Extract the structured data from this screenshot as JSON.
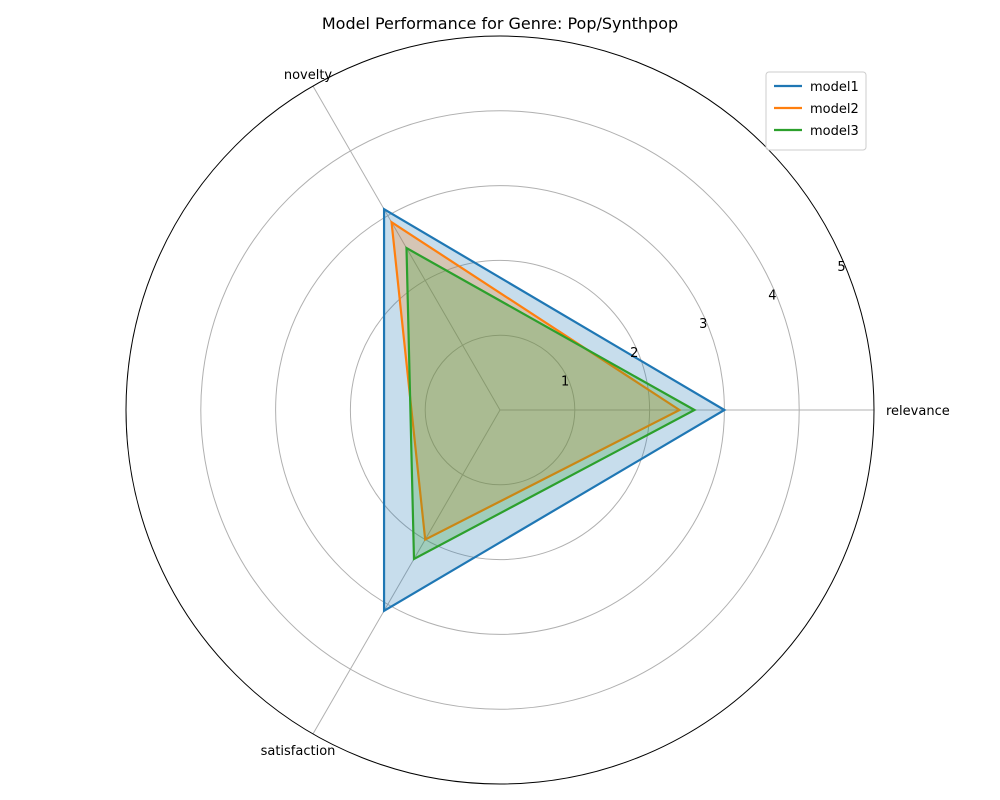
{
  "chart_data": {
    "type": "radar",
    "title": "Model Performance for Genre: Pop/Synthpop",
    "axes": [
      "relevance",
      "novelty",
      "satisfaction"
    ],
    "rlim": [
      0,
      5
    ],
    "radial_ticks": [
      "1",
      "2",
      "3",
      "4",
      "5"
    ],
    "radial_tick_values": [
      1,
      2,
      3,
      4,
      5
    ],
    "grid": true,
    "legend_position": "top-right",
    "series": [
      {
        "name": "model1",
        "values": [
          3.0,
          3.1,
          3.1
        ],
        "color": "#1f77b4",
        "filled": true
      },
      {
        "name": "model2",
        "values": [
          2.4,
          2.9,
          2.0
        ],
        "color": "#ff7f0e",
        "filled": true
      },
      {
        "name": "model3",
        "values": [
          2.6,
          2.5,
          2.3
        ],
        "color": "#2ca02c",
        "filled": true
      }
    ]
  }
}
